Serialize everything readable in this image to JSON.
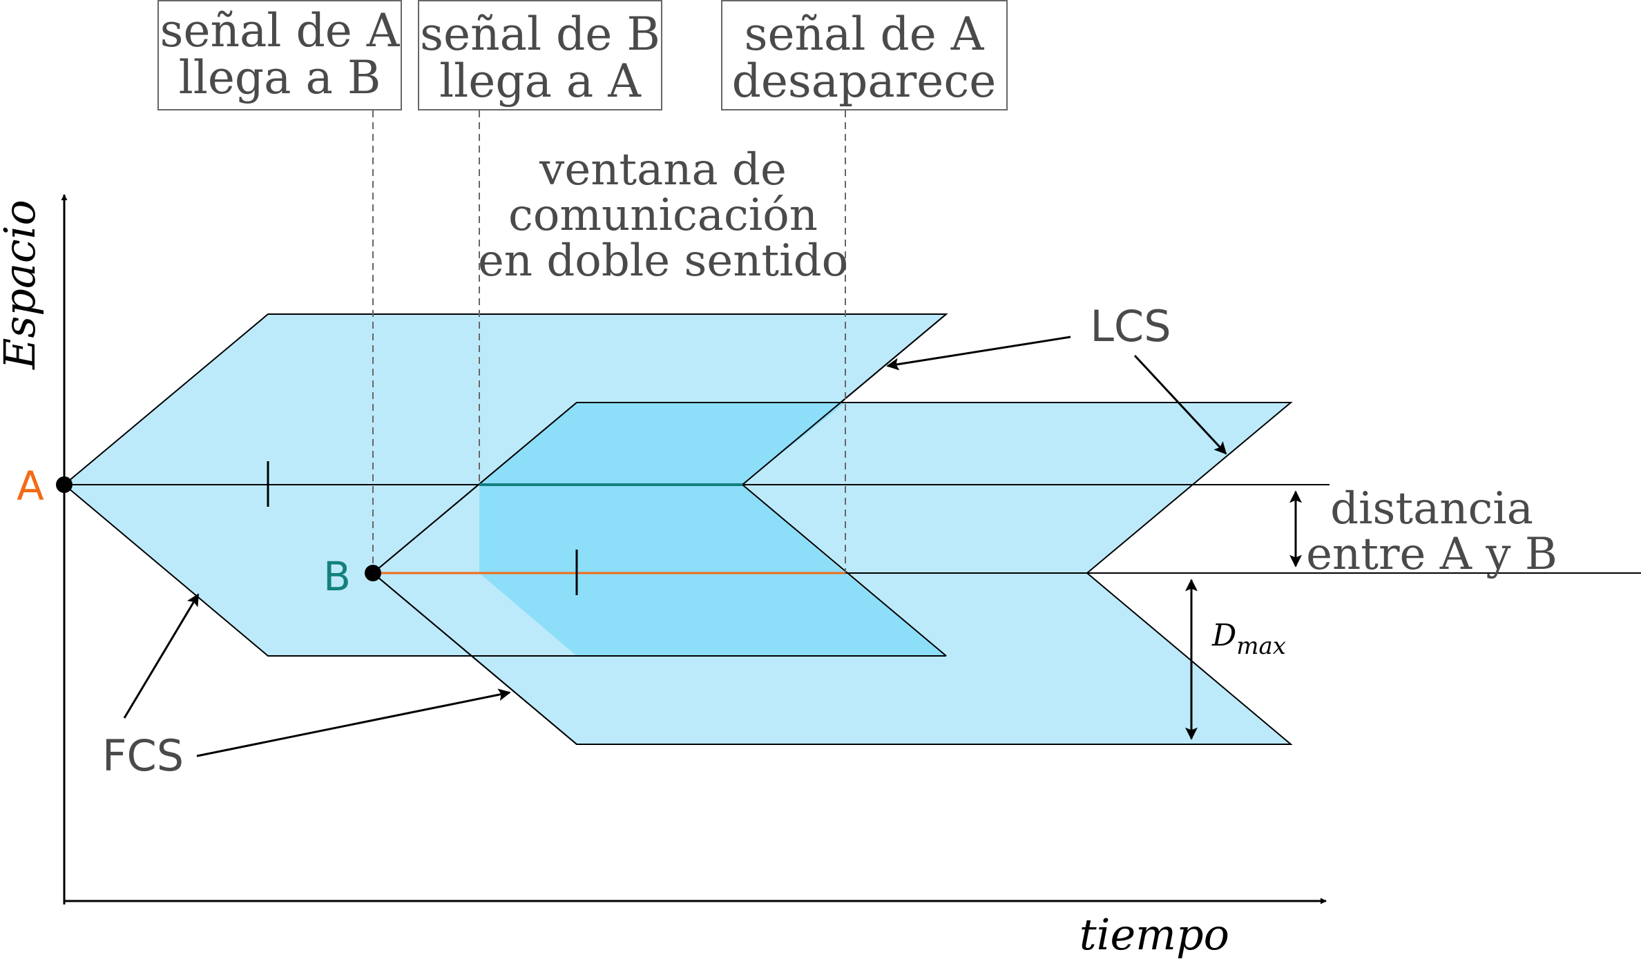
{
  "axes": {
    "y_label": "Espacio",
    "x_label": "tiempo"
  },
  "points": {
    "a_label": "A",
    "b_label": "B",
    "a_color": "#f26b16",
    "b_color": "#138080"
  },
  "event_boxes": [
    {
      "line1": "señal de A",
      "line2": "llega a B"
    },
    {
      "line1": "señal de B",
      "line2": "llega a A"
    },
    {
      "line1": "señal de A",
      "line2": "desaparece"
    }
  ],
  "window_label": {
    "line1": "ventana de",
    "line2": "comunicación",
    "line3": "en doble sentido"
  },
  "labels": {
    "lcs": "LCS",
    "fcs": "FCS",
    "distance_line1": "distancia",
    "distance_line2": "entre A y B",
    "dmax_main": "D",
    "dmax_sub": "max"
  },
  "colors": {
    "region_light": "#bdeafb",
    "region_overlap": "#8ddef8",
    "overlap_line": "#138080",
    "b_line": "#f26b16",
    "ink": "#000000",
    "text": "#4a4a4a"
  }
}
